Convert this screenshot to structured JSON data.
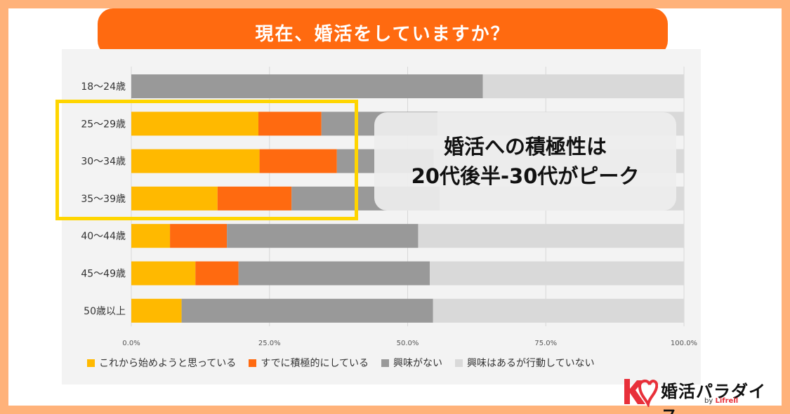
{
  "title": "現在、婚活をしていますか？",
  "callout": {
    "line1": "婚活への積極性は",
    "line2": "20代後半-30代がピーク"
  },
  "brand": {
    "name": "婚活パラダイス",
    "by": "by",
    "company": "Lifrell"
  },
  "colors": {
    "starting": "#ffb900",
    "active": "#ff6a10",
    "not_interested": "#999999",
    "interested_inactive": "#d9d9d9",
    "highlight": "#ffd500"
  },
  "chart_data": {
    "type": "bar",
    "orientation": "horizontal",
    "stacked": true,
    "title": "現在、婚活をしていますか？",
    "categories": [
      "18〜24歳",
      "25〜29歳",
      "30〜34歳",
      "35〜39歳",
      "40〜44歳",
      "45〜49歳",
      "50歳以上"
    ],
    "series": [
      {
        "name": "これから始めようと思っている",
        "values": [
          0,
          23.0,
          23.2,
          15.6,
          7.0,
          11.6,
          9.1
        ]
      },
      {
        "name": "すでに積極的にしている",
        "values": [
          0,
          11.4,
          14.0,
          13.4,
          10.3,
          7.8,
          0
        ]
      },
      {
        "name": "興味がない",
        "values": [
          63.6,
          21.0,
          17.5,
          26.8,
          34.6,
          34.6,
          45.5
        ]
      },
      {
        "name": "興味はあるが行動していない",
        "values": [
          36.4,
          44.6,
          45.3,
          44.2,
          48.1,
          46.0,
          45.4
        ]
      }
    ],
    "xlim": [
      0,
      100
    ],
    "xticks": [
      "0.0%",
      "25.0%",
      "50.0%",
      "75.0%",
      "100.0%"
    ],
    "grid": true,
    "legend": "bottom"
  }
}
